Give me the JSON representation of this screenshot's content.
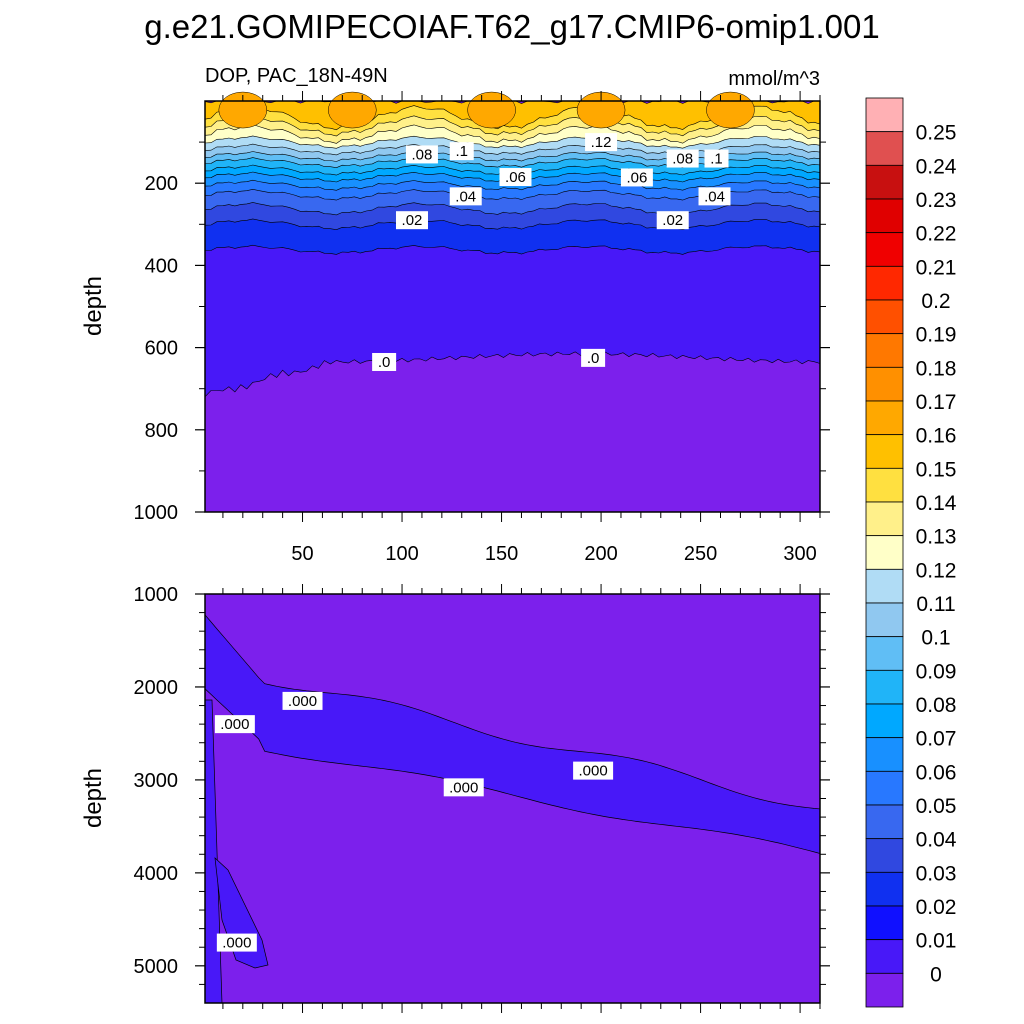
{
  "figure": {
    "title": "g.e21.GOMIPECOIAF.T62_g17.CMIP6-omip1.001",
    "left_string": "DOP, PAC_18N-49N",
    "right_string": "mmol/m^3"
  },
  "colorbar": {
    "levels": [
      "0.25",
      "0.24",
      "0.23",
      "0.22",
      "0.21",
      "0.2",
      "0.19",
      "0.18",
      "0.17",
      "0.16",
      "0.15",
      "0.14",
      "0.13",
      "0.12",
      "0.11",
      "0.1",
      "0.09",
      "0.08",
      "0.07",
      "0.06",
      "0.05",
      "0.04",
      "0.03",
      "0.02",
      "0.01",
      "0"
    ],
    "colors_top_to_bottom": [
      "#ffb0b4",
      "#e05050",
      "#c81010",
      "#e00000",
      "#f00000",
      "#ff2800",
      "#ff5000",
      "#ff7800",
      "#ff9000",
      "#ffa800",
      "#ffc000",
      "#ffe040",
      "#fff08a",
      "#ffffc8",
      "#b0dcf5",
      "#90c8f0",
      "#60bef5",
      "#20b4f8",
      "#00a8ff",
      "#1890ff",
      "#2878ff",
      "#3868f0",
      "#3048e0",
      "#1030f0",
      "#1010ff",
      "#4818f8",
      "#7c20ec"
    ]
  },
  "chart_data": [
    {
      "type": "contour",
      "panel": "upper",
      "ylabel": "depth",
      "xlim": [
        1,
        310
      ],
      "ylim": [
        1000,
        0
      ],
      "x_ticks": [
        50,
        100,
        150,
        200,
        250,
        300
      ],
      "y_ticks": [
        200,
        400,
        600,
        800,
        1000
      ],
      "contour_labels": [
        ".12",
        ".08",
        ".1",
        ".06",
        ".06",
        ".08",
        ".1",
        ".04",
        ".04",
        ".02",
        ".02",
        ".0",
        ".0"
      ],
      "bands": [
        {
          "value_range": [
            0.13,
            0.16
          ],
          "depth_min": 5,
          "depth_max": 80
        },
        {
          "value_range": [
            0.12,
            0.13
          ],
          "depth_min": 30,
          "depth_max": 90
        },
        {
          "value_range": [
            0.1,
            0.12
          ],
          "depth_min": 80,
          "depth_max": 140
        },
        {
          "value_range": [
            0.04,
            0.1
          ],
          "depth_min": 110,
          "depth_max": 240
        },
        {
          "value_range": [
            0.02,
            0.04
          ],
          "depth_min": 230,
          "depth_max": 320
        },
        {
          "value_range": [
            0.0,
            0.02
          ],
          "depth_min": 300,
          "depth_max": 380
        },
        {
          "value_range": [
            0.0,
            0.01
          ],
          "depth_min": 360,
          "depth_max": 700
        },
        {
          "value_range": [
            -0.01,
            0.0
          ],
          "depth_min": 610,
          "depth_max": 1000
        }
      ]
    },
    {
      "type": "contour",
      "panel": "lower",
      "ylabel": "depth",
      "xlim": [
        1,
        310
      ],
      "ylim": [
        5400,
        1000
      ],
      "y_ticks": [
        1000,
        2000,
        3000,
        4000,
        5000
      ],
      "contour_labels": [
        ".000",
        ".000",
        ".000",
        ".000",
        ".000"
      ],
      "regions": [
        {
          "value_range": [
            0.0,
            0.01
          ],
          "description_depth_upper_x_at_300": 3300,
          "description_depth_lower_x_at_300": 3780
        },
        {
          "value_range": [
            -0.01,
            0.0
          ],
          "fill": "background"
        }
      ]
    }
  ]
}
